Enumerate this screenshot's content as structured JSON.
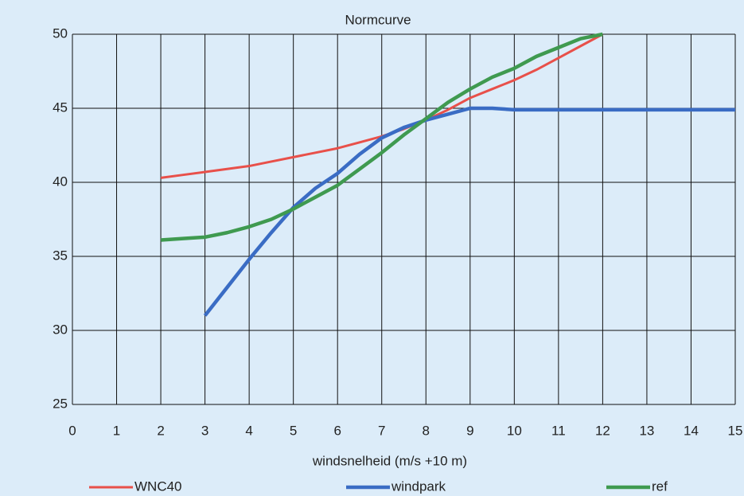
{
  "chart_data": {
    "type": "line",
    "title": "Normcurve",
    "x_label": "windsnelheid (m/s +10 m)",
    "x": [
      2,
      2.5,
      3,
      3.5,
      4,
      4.5,
      5,
      5.5,
      6,
      6.5,
      7,
      7.5,
      8,
      8.5,
      9,
      9.5,
      10,
      10.5,
      11,
      11.5,
      12,
      12.5,
      13,
      13.5,
      14,
      14.5,
      15
    ],
    "series": [
      {
        "name": "WNC40",
        "color": "#e8504a",
        "values": [
          40.3,
          40.5,
          40.7,
          40.9,
          41.1,
          41.4,
          41.7,
          42,
          42.3,
          42.7,
          43.1,
          43.6,
          44.2,
          44.9,
          45.7,
          46.3,
          46.9,
          47.6,
          48.4,
          49.2,
          50,
          null,
          null,
          null,
          null,
          null,
          null
        ]
      },
      {
        "name": "windpark",
        "color": "#3a6cc4",
        "values": [
          null,
          null,
          31,
          32.9,
          34.8,
          36.6,
          38.3,
          39.6,
          40.6,
          41.9,
          43,
          43.7,
          44.2,
          44.6,
          45,
          45,
          44.9,
          44.9,
          44.9,
          44.9,
          44.9,
          44.9,
          44.9,
          44.9,
          44.9,
          44.9,
          44.9
        ]
      },
      {
        "name": "ref",
        "color": "#3f9a50",
        "values": [
          36.1,
          36.2,
          36.3,
          36.6,
          37,
          37.5,
          38.2,
          39,
          39.8,
          40.9,
          42,
          43.2,
          44.3,
          45.4,
          46.3,
          47.1,
          47.7,
          48.5,
          49.1,
          49.7,
          50,
          null,
          null,
          null,
          null,
          null,
          null
        ]
      }
    ],
    "xlim": [
      0,
      15
    ],
    "xticks": [
      0,
      1,
      2,
      3,
      4,
      5,
      6,
      7,
      8,
      9,
      10,
      11,
      12,
      13,
      14,
      15
    ],
    "ylim": [
      25,
      50
    ],
    "yticks": [
      25,
      30,
      35,
      40,
      45,
      50
    ],
    "grid": true
  }
}
